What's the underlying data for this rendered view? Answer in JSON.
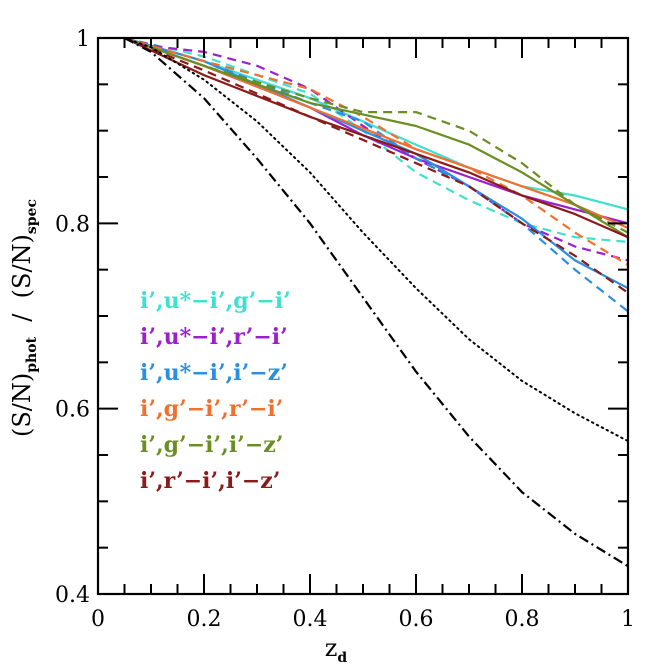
{
  "chart_data": {
    "type": "line",
    "xlabel_main": "z",
    "xlabel_sub": "d",
    "ylabel_parts": [
      "(S/N)",
      "phot",
      "  /  (S/N)",
      "spec"
    ],
    "xlim": [
      0,
      1
    ],
    "ylim": [
      0.4,
      1
    ],
    "x_ticks": [
      {
        "value": 0,
        "label": "0"
      },
      {
        "value": 0.2,
        "label": "0.2"
      },
      {
        "value": 0.4,
        "label": "0.4"
      },
      {
        "value": 0.6,
        "label": "0.6"
      },
      {
        "value": 0.8,
        "label": "0.8"
      },
      {
        "value": 1,
        "label": "1"
      }
    ],
    "y_ticks": [
      {
        "value": 0.4,
        "label": "0.4"
      },
      {
        "value": 0.6,
        "label": "0.6"
      },
      {
        "value": 0.8,
        "label": "0.8"
      },
      {
        "value": 1,
        "label": "1"
      }
    ],
    "legend_position": "left-center",
    "series": [
      {
        "name": "i’,u*−i’,g’−i’",
        "color": "#40e0d0",
        "style": "solid",
        "x": [
          0.05,
          0.2,
          0.4,
          0.6,
          0.7,
          0.8,
          0.9,
          1.0
        ],
        "y": [
          1.0,
          0.975,
          0.935,
          0.885,
          0.86,
          0.84,
          0.83,
          0.815
        ]
      },
      {
        "name": "i’,u*−i’,g’−i’",
        "color": "#40e0d0",
        "style": "dashed",
        "x": [
          0.05,
          0.2,
          0.4,
          0.5,
          0.6,
          0.7,
          0.8,
          0.9,
          1.0
        ],
        "y": [
          1.0,
          0.98,
          0.94,
          0.9,
          0.855,
          0.825,
          0.8,
          0.785,
          0.78
        ]
      },
      {
        "name": "i’,u*−i’,r’−i’",
        "color": "#9b1fd1",
        "style": "solid",
        "x": [
          0.05,
          0.2,
          0.4,
          0.5,
          0.6,
          0.7,
          0.8,
          0.9,
          1.0
        ],
        "y": [
          1.0,
          0.97,
          0.925,
          0.895,
          0.87,
          0.85,
          0.83,
          0.815,
          0.8
        ]
      },
      {
        "name": "i’,u*−i’,r’−i’",
        "color": "#9b1fd1",
        "style": "dashed",
        "x": [
          0.05,
          0.12,
          0.2,
          0.3,
          0.4,
          0.5,
          0.6,
          0.7,
          0.8,
          0.9,
          1.0
        ],
        "y": [
          1.0,
          0.99,
          0.985,
          0.97,
          0.945,
          0.905,
          0.87,
          0.84,
          0.8,
          0.775,
          0.76
        ]
      },
      {
        "name": "i’,u*−i’,i’−z’",
        "color": "#2a8fe0",
        "style": "solid",
        "x": [
          0.05,
          0.2,
          0.4,
          0.5,
          0.6,
          0.7,
          0.8,
          0.9,
          1.0
        ],
        "y": [
          1.0,
          0.975,
          0.925,
          0.9,
          0.875,
          0.84,
          0.805,
          0.76,
          0.73
        ]
      },
      {
        "name": "i’,u*−i’,i’−z’",
        "color": "#2a8fe0",
        "style": "dashed",
        "x": [
          0.05,
          0.2,
          0.4,
          0.5,
          0.6,
          0.7,
          0.8,
          0.9,
          1.0
        ],
        "y": [
          1.0,
          0.975,
          0.93,
          0.91,
          0.87,
          0.84,
          0.8,
          0.75,
          0.705
        ]
      },
      {
        "name": "i’,g’−i’,r’−i’",
        "color": "#f07030",
        "style": "solid",
        "x": [
          0.05,
          0.2,
          0.4,
          0.6,
          0.7,
          0.8,
          0.9,
          1.0
        ],
        "y": [
          1.0,
          0.97,
          0.925,
          0.88,
          0.86,
          0.84,
          0.82,
          0.795
        ]
      },
      {
        "name": "i’,g’−i’,r’−i’",
        "color": "#f07030",
        "style": "dashed",
        "x": [
          0.05,
          0.2,
          0.3,
          0.4,
          0.5,
          0.6,
          0.7,
          0.8,
          0.9,
          1.0
        ],
        "y": [
          1.0,
          0.975,
          0.96,
          0.945,
          0.915,
          0.88,
          0.86,
          0.83,
          0.79,
          0.755
        ]
      },
      {
        "name": "i’,g’−i’,i’−z’",
        "color": "#6b8e23",
        "style": "solid",
        "x": [
          0.05,
          0.2,
          0.4,
          0.6,
          0.7,
          0.8,
          0.9,
          1.0
        ],
        "y": [
          1.0,
          0.97,
          0.93,
          0.905,
          0.885,
          0.855,
          0.82,
          0.785
        ]
      },
      {
        "name": "i’,g’−i’,i’−z’",
        "color": "#6b8e23",
        "style": "dashed",
        "x": [
          0.05,
          0.2,
          0.4,
          0.5,
          0.6,
          0.7,
          0.8,
          0.9,
          1.0
        ],
        "y": [
          1.0,
          0.97,
          0.935,
          0.92,
          0.92,
          0.9,
          0.865,
          0.82,
          0.79
        ]
      },
      {
        "name": "i’,r’−i’,i’−z’",
        "color": "#8b1a1a",
        "style": "solid",
        "x": [
          0.05,
          0.2,
          0.4,
          0.6,
          0.7,
          0.8,
          0.9,
          1.0
        ],
        "y": [
          1.0,
          0.96,
          0.915,
          0.875,
          0.855,
          0.83,
          0.81,
          0.785
        ]
      },
      {
        "name": "i’,r’−i’,i’−z’",
        "color": "#8b1a1a",
        "style": "dashed",
        "x": [
          0.05,
          0.2,
          0.4,
          0.6,
          0.7,
          0.8,
          0.9,
          1.0
        ],
        "y": [
          1.0,
          0.965,
          0.915,
          0.865,
          0.84,
          0.8,
          0.765,
          0.725
        ]
      },
      {
        "name": "",
        "color": "#000000",
        "style": "dotted",
        "x": [
          0.05,
          0.1,
          0.2,
          0.3,
          0.4,
          0.5,
          0.6,
          0.7,
          0.8,
          0.9,
          1.0
        ],
        "y": [
          1.0,
          0.99,
          0.955,
          0.91,
          0.855,
          0.79,
          0.73,
          0.675,
          0.63,
          0.595,
          0.565
        ]
      },
      {
        "name": "",
        "color": "#000000",
        "style": "dashdot",
        "x": [
          0.05,
          0.1,
          0.2,
          0.3,
          0.4,
          0.5,
          0.6,
          0.7,
          0.8,
          0.9,
          1.0
        ],
        "y": [
          1.0,
          0.985,
          0.935,
          0.87,
          0.8,
          0.72,
          0.64,
          0.57,
          0.51,
          0.465,
          0.43
        ]
      }
    ],
    "legend": [
      {
        "text": "i’,u*−i’,g’−i’",
        "color": "#40e0d0"
      },
      {
        "text": "i’,u*−i’,r’−i’",
        "color": "#9b1fd1"
      },
      {
        "text": "i’,u*−i’,i’−z’",
        "color": "#2a8fe0"
      },
      {
        "text": "i’,g’−i’,r’−i’",
        "color": "#f07030"
      },
      {
        "text": "i’,g’−i’,i’−z’",
        "color": "#6b8e23"
      },
      {
        "text": "i’,r’−i’,i’−z’",
        "color": "#8b1a1a"
      }
    ]
  }
}
